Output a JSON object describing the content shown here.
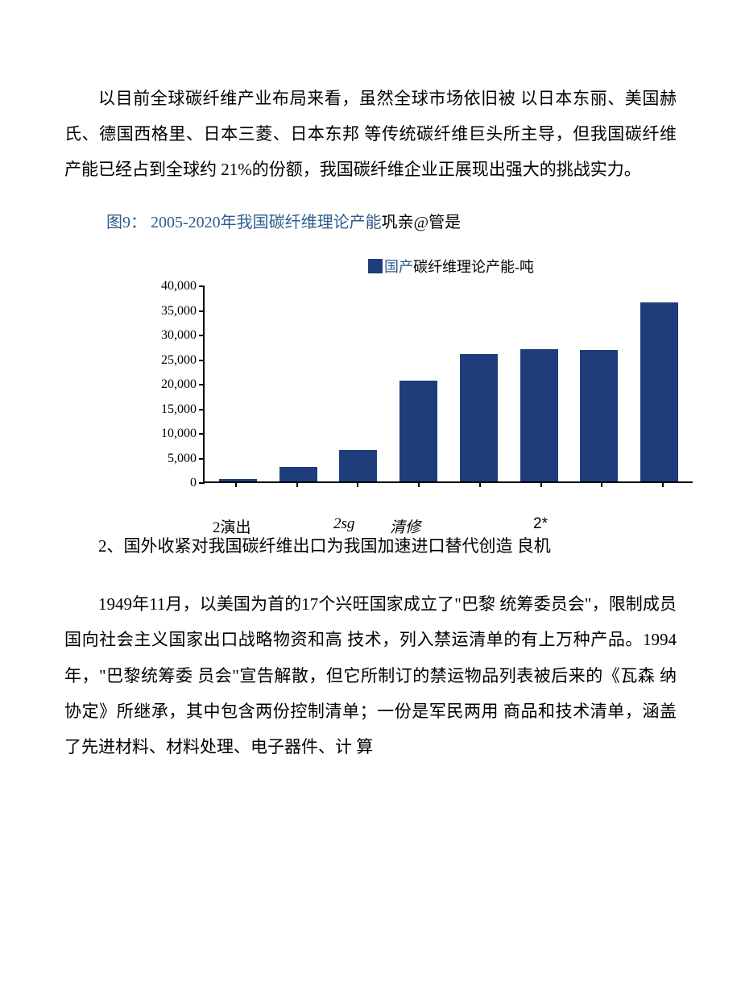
{
  "para1": "以目前全球碳纤维产业布局来看，虽然全球市场依旧被  以日本东丽、美国赫氏、德国西格里、日本三菱、日本东邦 等传统碳纤维巨头所主导，但我国碳纤维产能已经占到全球约  21%的份额，我国碳纤维企业正展现出强大的挑战实力。",
  "figure": {
    "label": "图9：",
    "title_blue": "  2005-2020年我国碳纤维理论产能",
    "title_black": "巩亲@管是"
  },
  "chart": {
    "type": "bar",
    "legend_swatch_color": "#1f3d7a",
    "legend_text_blue": "国产",
    "legend_text_black": "碳纤维理论产能-吨",
    "bar_color": "#1f3d7a",
    "ymax": 40000,
    "ytick_step": 5000,
    "yticks": [
      "40,000",
      "35,000",
      "30,000",
      "25,000",
      "20,000",
      "15,000",
      "10,000",
      "5,000",
      "0"
    ],
    "values": [
      500,
      3000,
      6500,
      20500,
      26000,
      27000,
      26800,
      36500
    ],
    "x_labels": {
      "l1": "2演出",
      "l2": "2sg",
      "l3": "清修",
      "l4": "2*"
    },
    "n_x_ticks": 8
  },
  "subsection_title": "2、国外收紧对我国碳纤维出口为我国加速进口替代创造 良机",
  "para2": "1949年11月，以美国为首的17个兴旺国家成立了\"巴黎 统筹委员会\"，限制成员国向社会主义国家出口战略物资和高 技术，列入禁运清单的有上万种产品。1994年，\"巴黎统筹委 员会\"宣告解散，但它所制订的禁运物品列表被后来的《瓦森 纳协定》所继承，其中包含两份控制清单；一份是军民两用 商品和技术清单，涵盖了先进材料、材料处理、电子器件、计 算"
}
